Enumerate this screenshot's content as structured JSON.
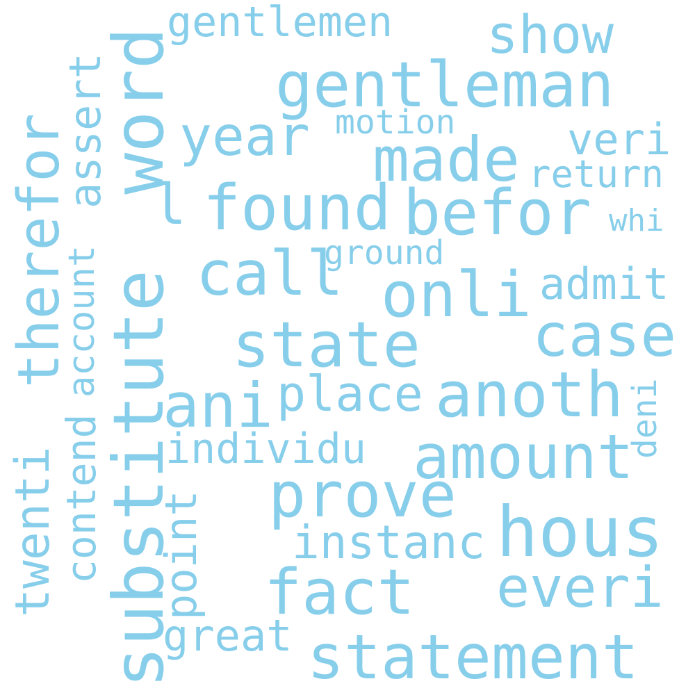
{
  "cloud": {
    "color": "#87ceeb",
    "words": {
      "substitute": "substitute",
      "word": "word",
      "gentleman": "gentleman",
      "gentlemen": "gentlemen",
      "show": "show",
      "year": "year",
      "made": "made",
      "motion": "motion",
      "veri": "veri",
      "return": "return",
      "l": "l",
      "found": "found",
      "befor": "befor",
      "whi": "whi",
      "call": "call",
      "ground": "ground",
      "onli": "onli",
      "admit": "admit",
      "state": "state",
      "case": "case",
      "ani": "ani",
      "place": "place",
      "anoth": "anoth",
      "deni": "deni",
      "amount": "amount",
      "individu": "individu",
      "prove": "prove",
      "hous": "hous",
      "instanc": "instanc",
      "fact": "fact",
      "everi": "everi",
      "great": "great",
      "statement": "statement",
      "therefor": "therefor",
      "assert": "assert",
      "account": "account",
      "contend": "contend",
      "twenti": "twenti",
      "point": "point"
    }
  }
}
